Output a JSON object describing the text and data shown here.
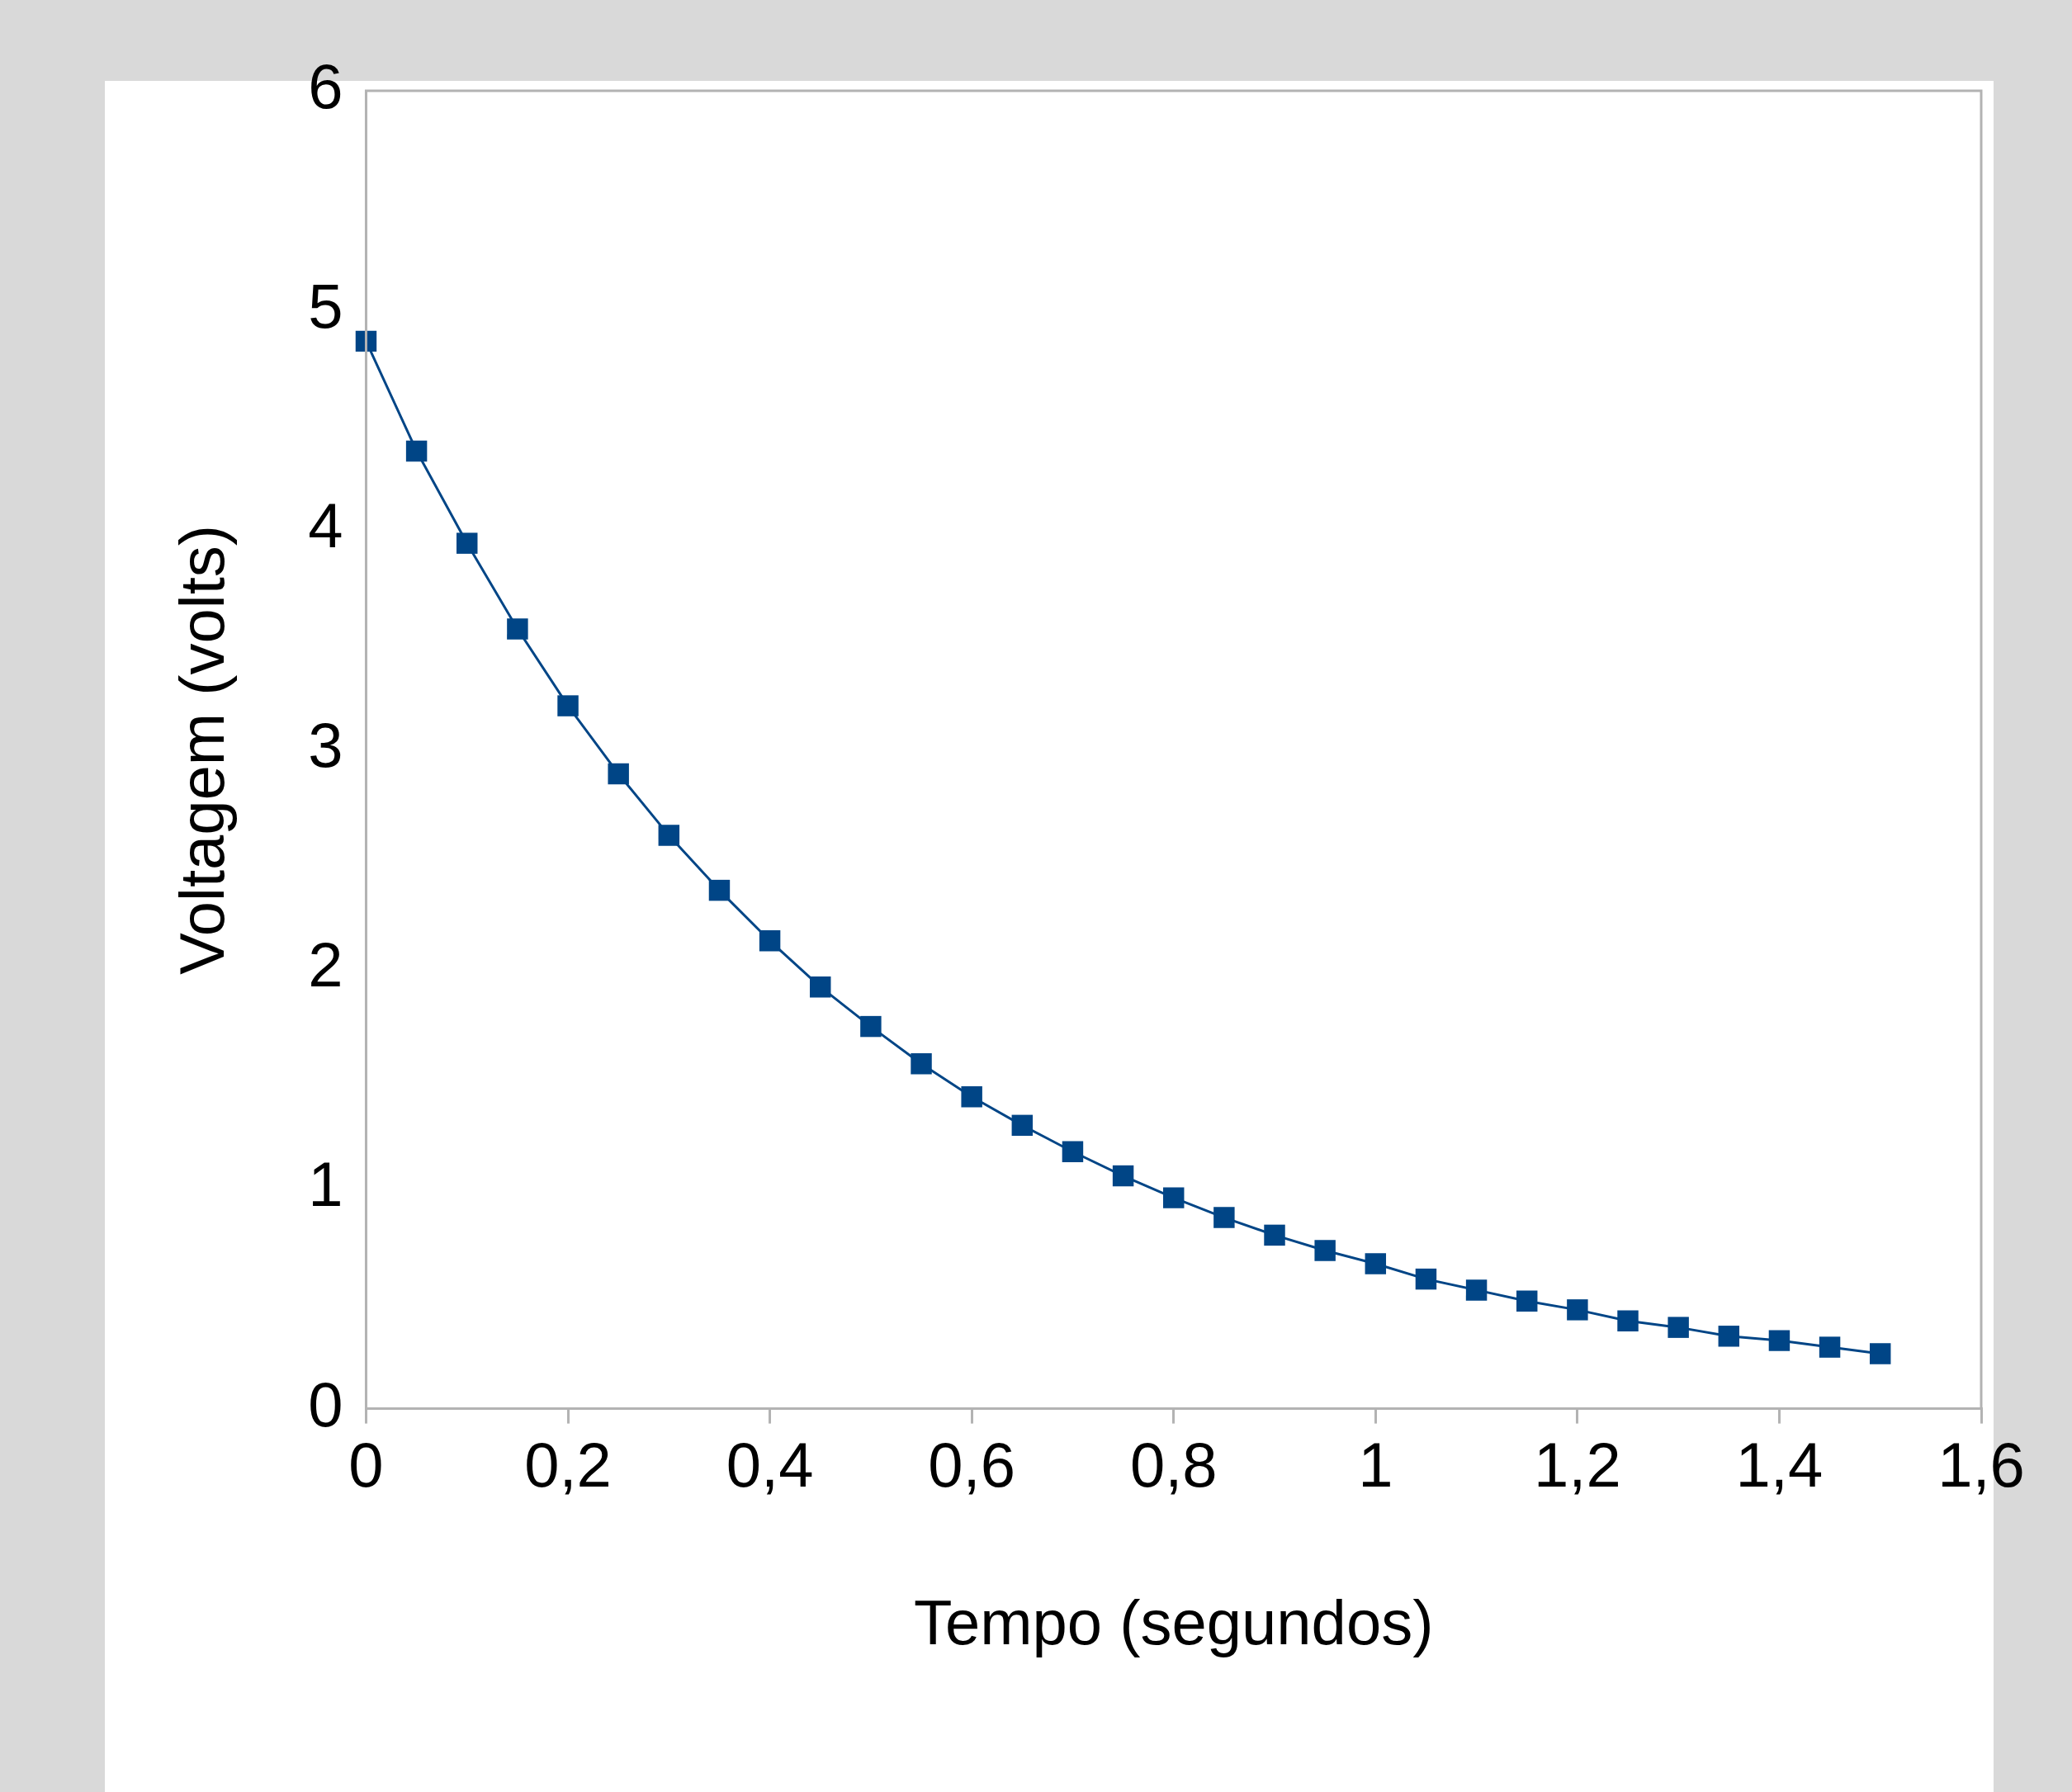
{
  "chart_data": {
    "type": "line",
    "xlabel": "Tempo (segundos)",
    "ylabel": "Voltagem (volts)",
    "x": [
      0,
      0.05,
      0.1,
      0.15,
      0.2,
      0.25,
      0.3,
      0.35,
      0.4,
      0.45,
      0.5,
      0.55,
      0.6,
      0.65,
      0.7,
      0.75,
      0.8,
      0.85,
      0.9,
      0.95,
      1.0,
      1.05,
      1.1,
      1.15,
      1.2,
      1.25,
      1.3,
      1.35,
      1.4,
      1.45,
      1.5
    ],
    "series": [
      {
        "color": "#004586",
        "values": [
          4.86,
          4.36,
          3.94,
          3.55,
          3.2,
          2.89,
          2.61,
          2.36,
          2.13,
          1.92,
          1.74,
          1.57,
          1.42,
          1.29,
          1.17,
          1.06,
          0.96,
          0.87,
          0.79,
          0.72,
          0.66,
          0.59,
          0.54,
          0.49,
          0.45,
          0.4,
          0.37,
          0.33,
          0.31,
          0.28,
          0.25
        ]
      }
    ],
    "xlim": [
      0,
      1.6
    ],
    "xticks": [
      0,
      {
        "value": 0.2,
        "label": "0,2"
      },
      {
        "value": 0.4,
        "label": "0,4"
      },
      {
        "value": 0.6,
        "label": "0,6"
      },
      {
        "value": 0.8,
        "label": "0,8"
      },
      1,
      {
        "value": 1.2,
        "label": "1,2"
      },
      {
        "value": 1.4,
        "label": "1,4"
      },
      {
        "value": 1.6,
        "label": "1,6"
      }
    ],
    "ylim": [
      0,
      6
    ],
    "yticks": [
      0,
      1,
      2,
      3,
      4,
      5,
      6
    ],
    "grid": false,
    "legend": false,
    "marker": "square",
    "line_style": "solid"
  }
}
